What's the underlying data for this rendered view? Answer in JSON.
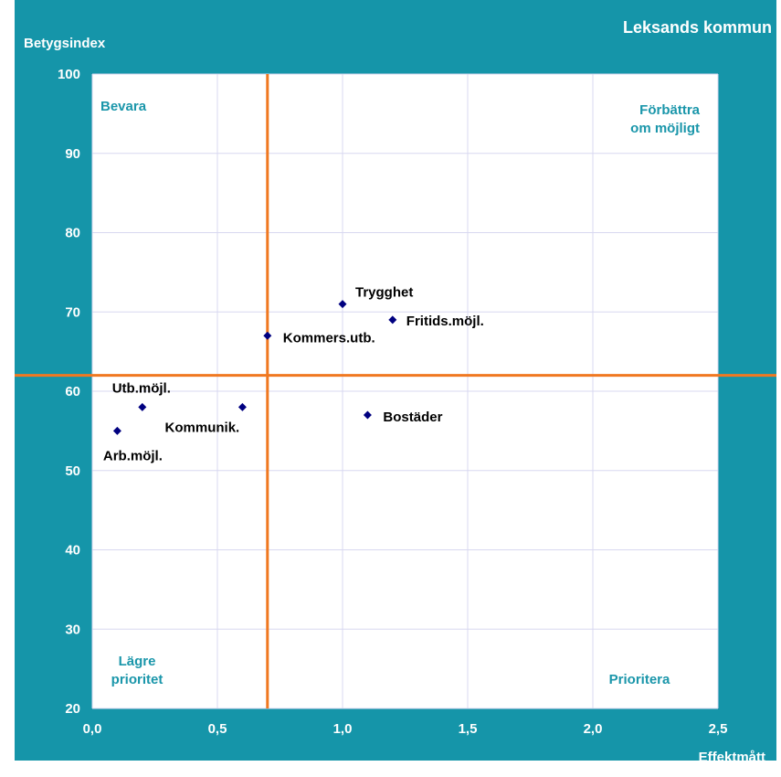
{
  "chart_data": {
    "type": "scatter",
    "title": "Leksands kommun",
    "xlabel": "Effektmått",
    "ylabel": "Betygsindex",
    "xlim": [
      0,
      2.5
    ],
    "ylim": [
      20,
      100
    ],
    "x_ticks": [
      "0,0",
      "0,5",
      "1,0",
      "1,5",
      "2,0",
      "2,5"
    ],
    "y_ticks": [
      "20",
      "30",
      "40",
      "50",
      "60",
      "70",
      "80",
      "90",
      "100"
    ],
    "grid": true,
    "points": [
      {
        "label": "Trygghet",
        "x": 1.0,
        "y": 71
      },
      {
        "label": "Fritids.möjl.",
        "x": 1.2,
        "y": 69
      },
      {
        "label": "Kommers.utb.",
        "x": 0.7,
        "y": 67
      },
      {
        "label": "Utb.möjl.",
        "x": 0.2,
        "y": 58
      },
      {
        "label": "Kommunik.",
        "x": 0.6,
        "y": 58
      },
      {
        "label": "Bostäder",
        "x": 1.1,
        "y": 57
      },
      {
        "label": "Arb.möjl.",
        "x": 0.1,
        "y": 55
      }
    ],
    "reference_lines": {
      "x": 0.7,
      "y": 62
    },
    "quadrant_labels": {
      "top_left": [
        "Bevara"
      ],
      "top_right": [
        "Förbättra",
        "om möjligt"
      ],
      "bottom_left": [
        "Lägre",
        "prioritet"
      ],
      "bottom_right": [
        "Prioritera"
      ]
    },
    "colors": {
      "background": "#1595a9",
      "plot_area": "#ffffff",
      "gridline": "#d8d8f0",
      "reference_line": "#f07820",
      "marker": "#000080",
      "quadrant_text": "#1a96aa"
    }
  }
}
